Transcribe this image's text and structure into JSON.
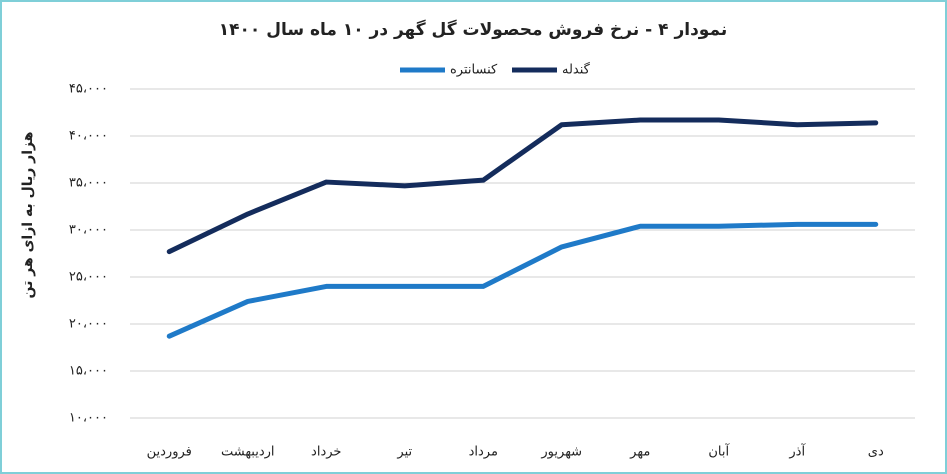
{
  "chart_data": {
    "type": "line",
    "title": "نمودار ۴ - نرخ فروش محصولات گل گهر در ۱۰ ماه سال ۱۴۰۰",
    "y_label": "هزار ریال به ازای هر تن",
    "categories": [
      "فروردین",
      "اردیبهشت",
      "خرداد",
      "تیر",
      "مرداد",
      "شهریور",
      "مهر",
      "آبان",
      "آذر",
      "دی"
    ],
    "series": [
      {
        "name": "کنسانتره",
        "color": "#1f7ac8",
        "values": [
          18700,
          22400,
          24000,
          24000,
          24000,
          28200,
          30400,
          30400,
          30600,
          30600
        ]
      },
      {
        "name": "گندله",
        "color": "#142c5c",
        "values": [
          27700,
          31700,
          35100,
          34700,
          35300,
          41200,
          41700,
          41700,
          41200,
          41400
        ]
      }
    ],
    "ylim": [
      10000,
      45000
    ],
    "yticks": [
      {
        "value": 10000,
        "label": "۱۰،۰۰۰"
      },
      {
        "value": 15000,
        "label": "۱۵،۰۰۰"
      },
      {
        "value": 20000,
        "label": "۲۰،۰۰۰"
      },
      {
        "value": 25000,
        "label": "۲۵،۰۰۰"
      },
      {
        "value": 30000,
        "label": "۳۰،۰۰۰"
      },
      {
        "value": 35000,
        "label": "۳۵،۰۰۰"
      },
      {
        "value": 40000,
        "label": "۴۰،۰۰۰"
      },
      {
        "value": 45000,
        "label": "۴۵،۰۰۰"
      }
    ],
    "grid": true
  }
}
